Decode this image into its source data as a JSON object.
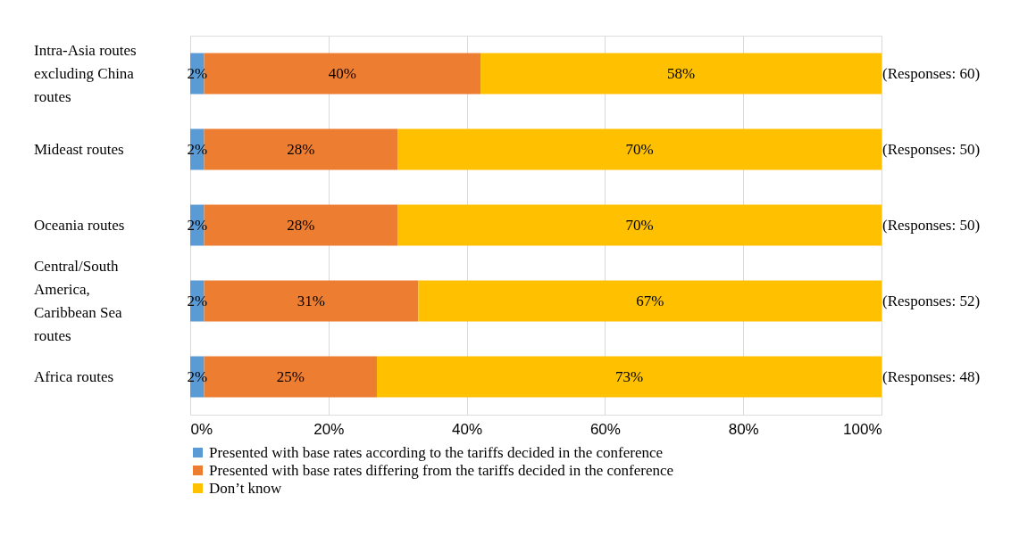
{
  "chart_data": {
    "type": "bar",
    "orientation": "horizontal",
    "stacked": true,
    "categories": [
      "Intra-Asia routes excluding China routes",
      "Mideast routes",
      "Oceania routes",
      "Central/South America, Caribbean Sea routes",
      "Africa routes"
    ],
    "series": [
      {
        "name": "Presented with base rates according to the tariffs decided in the conference",
        "color": "#5b9bd5",
        "values": [
          2,
          2,
          2,
          2,
          2
        ]
      },
      {
        "name": "Presented with base rates differing from the tariffs decided in the conference",
        "color": "#ed7d31",
        "values": [
          40,
          28,
          28,
          31,
          25
        ]
      },
      {
        "name": "Don’t know",
        "color": "#ffc000",
        "values": [
          58,
          70,
          70,
          67,
          73
        ]
      }
    ],
    "xlim": [
      0,
      100
    ],
    "xticks": [
      {
        "value": 0,
        "label": "0%"
      },
      {
        "value": 20,
        "label": "20%"
      },
      {
        "value": 40,
        "label": "40%"
      },
      {
        "value": 60,
        "label": "60%"
      },
      {
        "value": 80,
        "label": "80%"
      },
      {
        "value": 100,
        "label": "100%"
      }
    ],
    "value_labels": [
      [
        "2%",
        "2%",
        "2%",
        "2%",
        "2%"
      ],
      [
        "40%",
        "28%",
        "28%",
        "31%",
        "25%"
      ],
      [
        "58%",
        "70%",
        "70%",
        "67%",
        "73%"
      ]
    ],
    "annotations": [
      "(Responses: 60)",
      "(Responses: 50)",
      "(Responses: 50)",
      "(Responses: 52)",
      "(Responses: 48)"
    ],
    "grid": "x",
    "legend": "bottom"
  }
}
